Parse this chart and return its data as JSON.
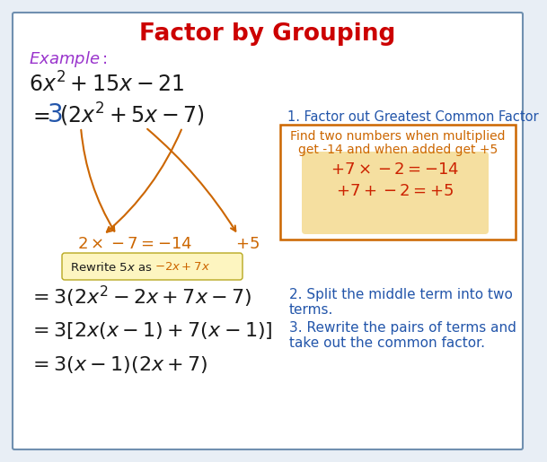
{
  "title": "Factor by Grouping",
  "title_color": "#cc0000",
  "bg_color": "#e8eef5",
  "border_color": "#7090b0",
  "white": "#ffffff",
  "example_color": "#9933cc",
  "math_color": "#1a1a1a",
  "blue_color": "#2255aa",
  "orange_color": "#cc6600",
  "red_color": "#cc2200",
  "gcf_note": "1. Factor out Greatest Common Factor",
  "find_line1": "Find two numbers when multiplied",
  "find_line2": "get -14 and when added get +5",
  "inner_color": "#f5dfa0",
  "split_line1": "2. Split the middle term into two",
  "split_line2": "terms.",
  "split_line3": "3. Rewrite the pairs of terms and",
  "split_line4": "take out the common factor."
}
